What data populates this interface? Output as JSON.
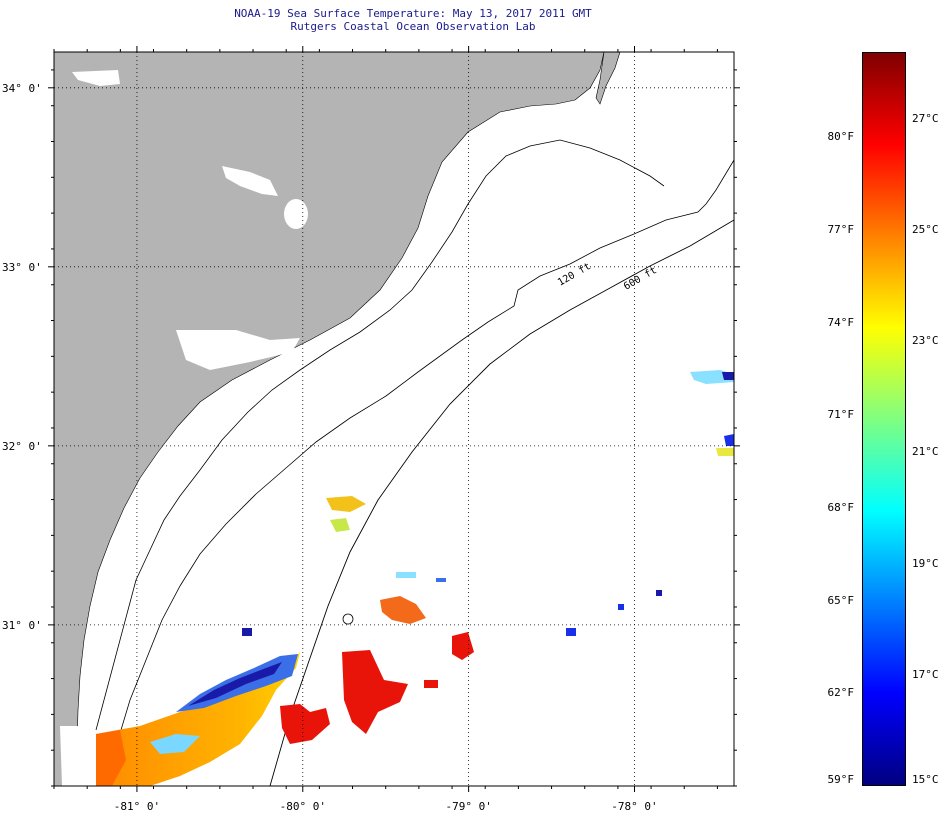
{
  "title": "NOAA-19 Sea Surface Temperature:  May 13, 2017 2011 GMT",
  "subtitle": "Rutgers Coastal Ocean Observation Lab",
  "map": {
    "lon_range": [
      -81.5,
      -77.4
    ],
    "lat_range": [
      30.1,
      34.2
    ],
    "lat_labels": [
      "34° 0'",
      "33° 0'",
      "32° 0'",
      "31° 0'"
    ],
    "lat_values": [
      34,
      33,
      32,
      31
    ],
    "lon_labels": [
      "-81° 0'",
      "-80° 0'",
      "-79° 0'",
      "-78° 0'"
    ],
    "lon_values": [
      -81,
      -80,
      -79,
      -78
    ],
    "contour_labels": [
      "120 ft",
      "600 ft"
    ],
    "colors": {
      "land": "#b4b4b4",
      "ocean": "#ffffff",
      "grid": "#000000"
    }
  },
  "colorbar": {
    "fahrenheit_labels": [
      "80°F",
      "77°F",
      "74°F",
      "71°F",
      "68°F",
      "65°F",
      "62°F",
      "59°F"
    ],
    "fahrenheit_values": [
      80,
      77,
      74,
      71,
      68,
      65,
      62,
      59
    ],
    "celsius_labels": [
      "27°C",
      "25°C",
      "23°C",
      "21°C",
      "19°C",
      "17°C",
      "15°C"
    ],
    "celsius_values": [
      27,
      25,
      23,
      21,
      19,
      17,
      15
    ],
    "range_c": [
      15,
      28.2
    ],
    "colors": [
      "#000080",
      "#0000ff",
      "#0080ff",
      "#00ffff",
      "#80ff80",
      "#ffff00",
      "#ff8000",
      "#ff0000",
      "#800000"
    ]
  }
}
